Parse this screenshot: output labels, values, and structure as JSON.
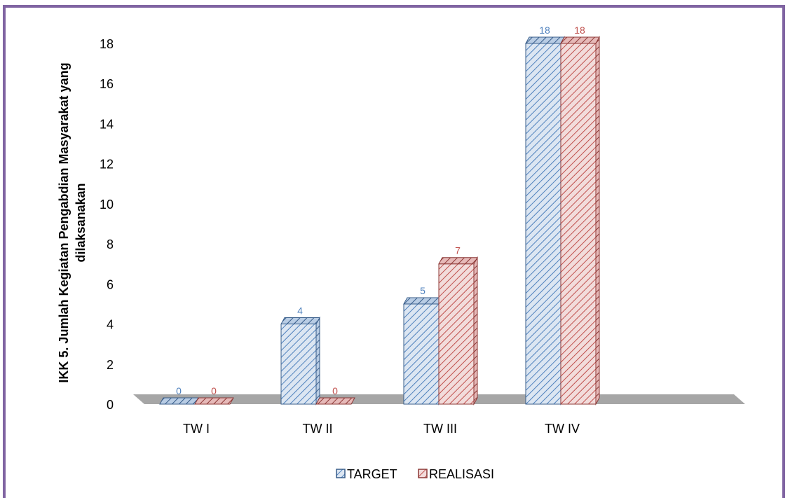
{
  "chart_data": {
    "type": "bar",
    "title": "",
    "ylabel_lines": [
      "IKK 5. Jumlah Kegiatan Pengabdian Masyarakat yang",
      "dilaksanakan"
    ],
    "xlabel": "",
    "categories": [
      "TW I",
      "TW II",
      "TW III",
      "TW IV"
    ],
    "ylim": [
      0,
      18
    ],
    "yticks": [
      0,
      2,
      4,
      6,
      8,
      10,
      12,
      14,
      16,
      18
    ],
    "series": [
      {
        "name": "TARGET",
        "values": [
          0,
          4,
          5,
          18
        ],
        "color": "#4f81bd",
        "label_color": "#4f81bd"
      },
      {
        "name": "REALISASI",
        "values": [
          0,
          0,
          7,
          18
        ],
        "color": "#c0504d",
        "label_color": "#c0504d"
      }
    ],
    "legend_position": "bottom",
    "grid": false,
    "floor_color": "#a6a6a6"
  }
}
